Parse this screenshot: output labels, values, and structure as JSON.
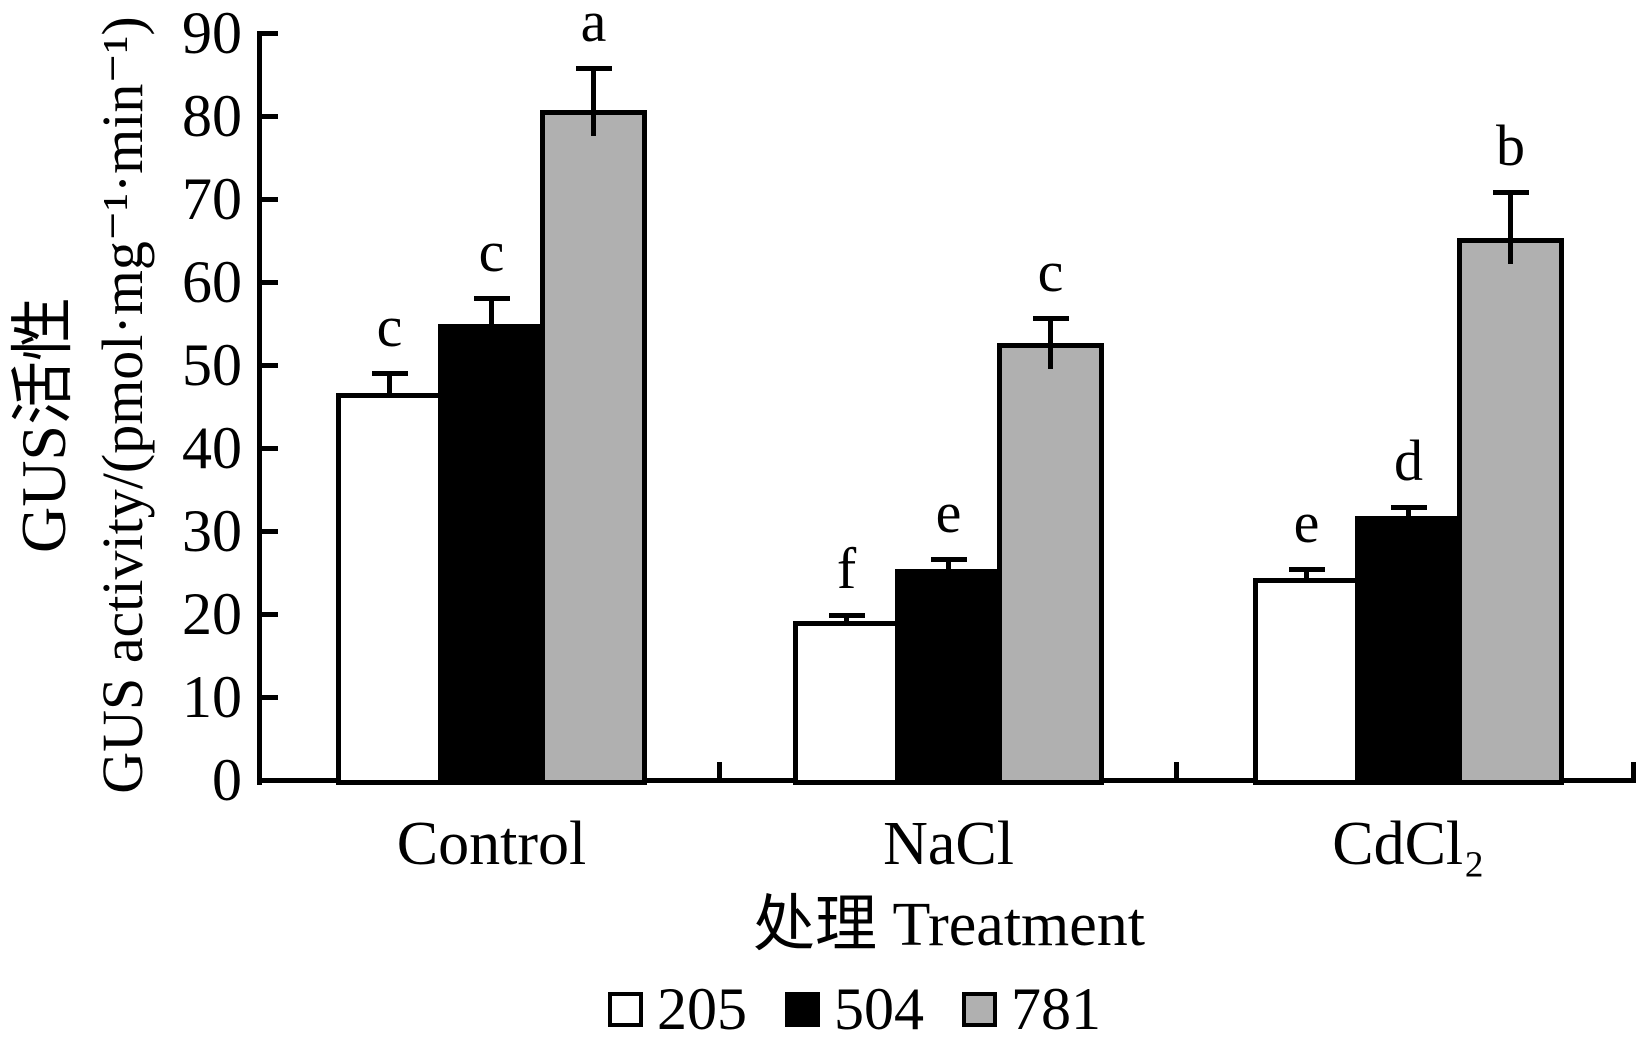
{
  "chart_data": {
    "type": "bar",
    "title": "",
    "categories": [
      "Control",
      "NaCl",
      "CdCl₂"
    ],
    "series": [
      {
        "name": "205",
        "color": "#ffffff",
        "values": [
          46.6,
          19.2,
          24.3
        ],
        "errors": [
          2.4,
          0.7,
          1.1
        ],
        "letters": [
          "c",
          "f",
          "e"
        ]
      },
      {
        "name": "504",
        "color": "#000000",
        "values": [
          54.9,
          25.4,
          31.8
        ],
        "errors": [
          3.2,
          1.2,
          1.1
        ],
        "letters": [
          "c",
          "e",
          "d"
        ]
      },
      {
        "name": "781",
        "color": "#b0b0b0",
        "values": [
          80.7,
          52.7,
          65.3
        ],
        "errors": [
          5.1,
          3.0,
          5.5
        ],
        "letters": [
          "a",
          "c",
          "b"
        ]
      }
    ],
    "ylabel_cn": "GUS活性",
    "ylabel_en": "GUS activity/(pmol·mg⁻¹·min⁻¹)",
    "xlabel": "处理 Treatment",
    "ylim": [
      0,
      90
    ],
    "ytick_step": 10,
    "yticks": [
      0,
      10,
      20,
      30,
      40,
      50,
      60,
      70,
      80,
      90
    ],
    "grid": false,
    "legend_position": "bottom",
    "error_bars": "upper",
    "significance_letters": true,
    "axis_color": "#000000",
    "background_color": "#ffffff"
  }
}
